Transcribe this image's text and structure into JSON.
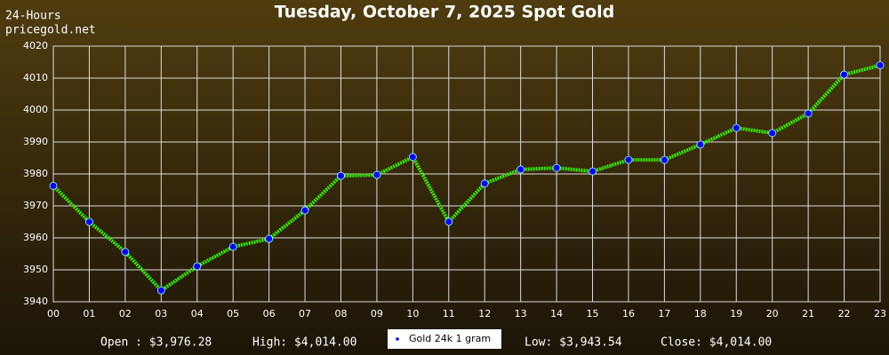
{
  "chart_data": {
    "type": "line",
    "title": "Tuesday, October 7, 2025 Spot Gold",
    "subtitle": [
      "24-Hours",
      "pricegold.net"
    ],
    "categories": [
      "00",
      "01",
      "02",
      "03",
      "04",
      "05",
      "06",
      "07",
      "08",
      "09",
      "10",
      "11",
      "12",
      "13",
      "14",
      "15",
      "16",
      "17",
      "18",
      "19",
      "20",
      "21",
      "22",
      "23"
    ],
    "series": [
      {
        "name": "Gold 24k 1 gram",
        "color": "#33ee00",
        "marker_color": "#0000ff",
        "values": [
          3976.28,
          3965,
          3955.6,
          3943.54,
          3951.1,
          3957.2,
          3959.7,
          3968.6,
          3979.4,
          3979.7,
          3985.3,
          3965,
          3977,
          3981.4,
          3981.9,
          3980.8,
          3984.4,
          3984.4,
          3989.2,
          3994.4,
          3992.8,
          3998.9,
          4011.1,
          4014
        ]
      }
    ],
    "ylim": [
      3940,
      4020
    ],
    "yticks": [
      3940,
      3950,
      3960,
      3970,
      3980,
      3990,
      4000,
      4010,
      4020
    ],
    "grid": true,
    "annotations": [
      "Open : $3,976.28",
      "High: $4,014.00",
      "Low: $3,943.54",
      "Close: $4,014.00"
    ]
  }
}
